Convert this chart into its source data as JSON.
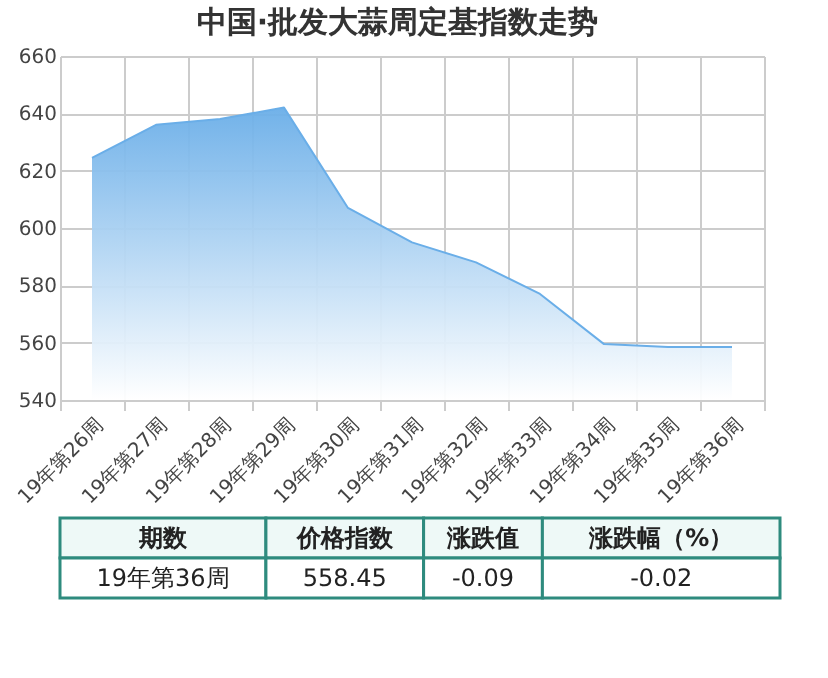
{
  "chart_data": {
    "type": "area",
    "title": "中国·批发大蒜周定基指数走势",
    "categories": [
      "19年第26周",
      "19年第27周",
      "19年第28周",
      "19年第29周",
      "19年第30周",
      "19年第31周",
      "19年第32周",
      "19年第33周",
      "19年第34周",
      "19年第35周",
      "19年第36周"
    ],
    "series": [
      {
        "color": "#6aaee8",
        "values": [
          624.5,
          636,
          638,
          642,
          607,
          595,
          588,
          577,
          559.5,
          558.5,
          558.5
        ]
      }
    ],
    "ylim": [
      540,
      660
    ],
    "yticks": [
      540,
      560,
      580,
      600,
      620,
      640,
      660
    ],
    "grid": true,
    "annotations": [
      "期数",
      "价格指数",
      "涨跌值",
      "涨跌幅（%）",
      "19年第36周",
      "558.45",
      "-0.09",
      "-0.02"
    ]
  }
}
